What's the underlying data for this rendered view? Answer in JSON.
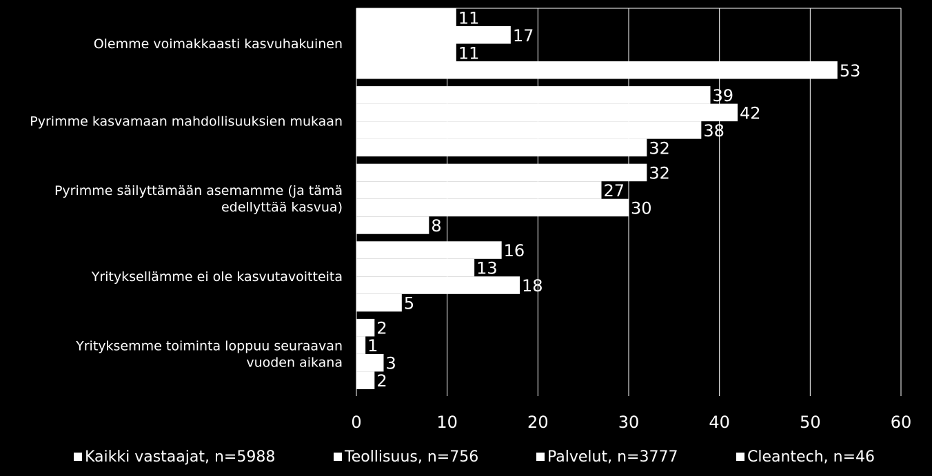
{
  "chart_data": {
    "type": "bar",
    "orientation": "horizontal",
    "categories": [
      [
        "Olemme voimakkaasti kasvuhakuinen"
      ],
      [
        "Pyrimme kasvamaan mahdollisuuksien mukaan"
      ],
      [
        "Pyrimme säilyttämään asemamme (ja tämä",
        "edellyttää kasvua)"
      ],
      [
        "Yrityksellämme ei ole kasvutavoitteita"
      ],
      [
        "Yrityksemme toiminta loppuu seuraavan",
        "vuoden aikana"
      ]
    ],
    "series": [
      {
        "name": "Kaikki vastaajat, n=5988",
        "values": [
          11,
          39,
          32,
          16,
          2
        ]
      },
      {
        "name": "Teollisuus, n=756",
        "values": [
          17,
          42,
          27,
          13,
          1
        ]
      },
      {
        "name": "Palvelut, n=3777",
        "values": [
          11,
          38,
          30,
          18,
          3
        ]
      },
      {
        "name": "Cleantech, n=46",
        "values": [
          53,
          32,
          8,
          5,
          2
        ]
      }
    ],
    "xlim": [
      0,
      60
    ],
    "xticks": [
      0,
      10,
      20,
      30,
      40,
      50,
      60
    ],
    "grid": true,
    "legend": "bottom",
    "colors": {
      "bar": "#ffffff",
      "background": "#000000",
      "grid": "#ffffff",
      "text": "#ffffff"
    }
  }
}
